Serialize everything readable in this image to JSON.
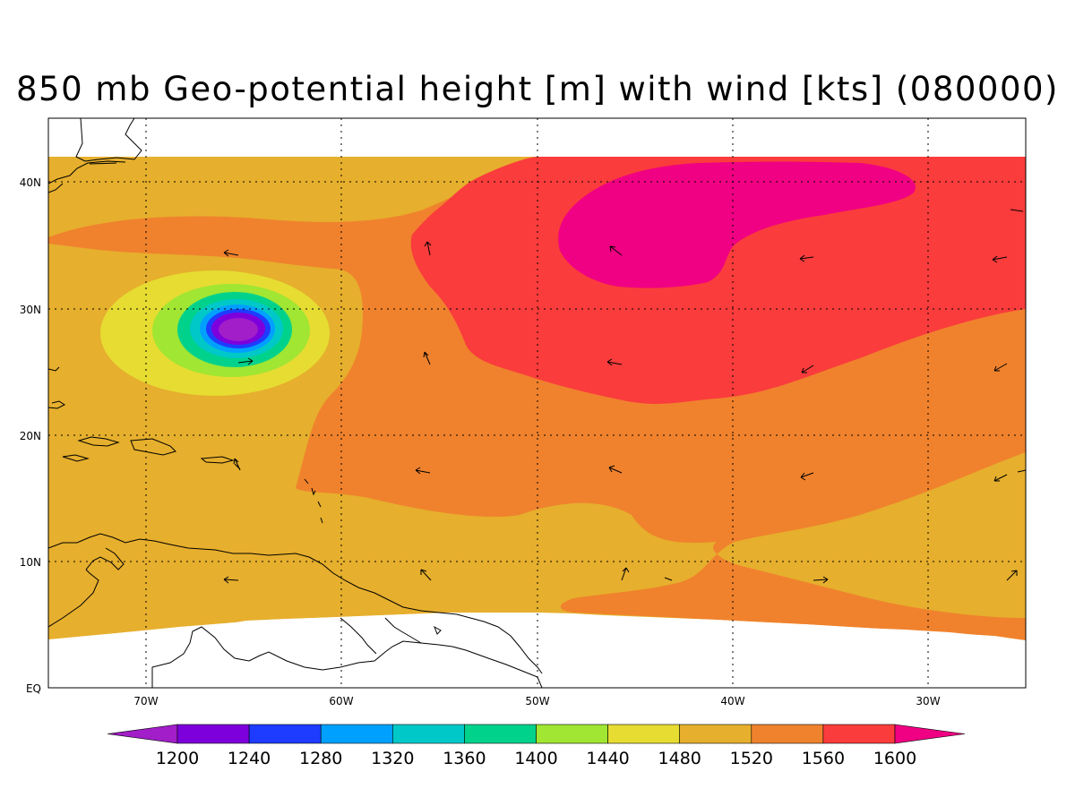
{
  "title": "850 mb Geo-potential height [m] with wind [kts] (080000)",
  "map": {
    "lon_range": [
      -75,
      -25
    ],
    "lat_range": [
      0,
      45
    ],
    "lon_ticks": [
      "70W",
      "60W",
      "50W",
      "40W",
      "30W"
    ],
    "lat_ticks": [
      "EQ",
      "10N",
      "20N",
      "30N",
      "40N"
    ],
    "grid": "dotted",
    "data_lat_extent_north": "42N"
  },
  "colorbar": {
    "levels": [
      "1200",
      "1240",
      "1280",
      "1320",
      "1360",
      "1400",
      "1440",
      "1480",
      "1520",
      "1560",
      "1600"
    ],
    "colors": [
      "#a11ec8",
      "#7d00dc",
      "#1e3cff",
      "#00a0ff",
      "#00c8c8",
      "#00d28c",
      "#a0e632",
      "#e6dc32",
      "#e6af2d",
      "#f0822d",
      "#fa3c3c",
      "#f00082"
    ],
    "extends": "both"
  },
  "fields": {
    "height_min_center": "28N 65W",
    "height_max_center": "35N 40W"
  }
}
